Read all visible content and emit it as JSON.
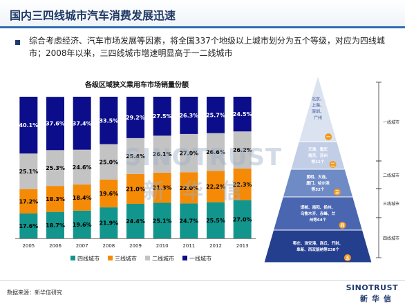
{
  "header": {
    "title": "国内三四线城市汽车消费发展迅速"
  },
  "intro": {
    "text": "综合考虑经济、汽车市场发展等因素，将全国337个地级以上城市划分为五个等级，对应为四线城市；2008年以来，三四线城市增速明显高于一二线城市"
  },
  "chart_data": {
    "type": "bar",
    "stacked": true,
    "title": "各级区域狭义乘用车市场销量份额",
    "categories": [
      "2005",
      "2006",
      "2007",
      "2008",
      "2009",
      "2010",
      "2011",
      "2012",
      "2013"
    ],
    "series": [
      {
        "name": "四线城市",
        "color": "#12958c",
        "values": [
          17.6,
          18.7,
          19.6,
          21.9,
          24.4,
          25.1,
          24.7,
          25.5,
          27.0
        ],
        "labels": [
          "17.6%",
          "18.7%",
          "19.6%",
          "21.9%",
          "24.4%",
          "25.1%",
          "24.7%",
          "25.5%",
          "27.0%"
        ]
      },
      {
        "name": "三线城市",
        "color": "#f58a07",
        "values": [
          17.2,
          18.3,
          18.4,
          19.6,
          21.0,
          21.3,
          22.0,
          22.2,
          22.3
        ],
        "labels": [
          "17.2%",
          "18.3%",
          "18.4%",
          "19.6%",
          "21.0%",
          "21.3%",
          "22.0%",
          "22.2%",
          "22.3%"
        ]
      },
      {
        "name": "二线城市",
        "color": "#c3c3c3",
        "values": [
          25.1,
          25.3,
          24.6,
          25.0,
          25.4,
          26.1,
          27.0,
          26.6,
          26.2
        ],
        "labels": [
          "25.1%",
          "25.3%",
          "24.6%",
          "25.0%",
          "25.4%",
          "26.1%",
          "27.0%",
          "26.6%",
          "26.2%"
        ]
      },
      {
        "name": "一线城市",
        "color": "#0b0d8a",
        "values": [
          40.1,
          37.6,
          37.4,
          33.5,
          29.2,
          27.5,
          26.3,
          25.7,
          24.5
        ],
        "labels": [
          "40.1%",
          "37.6%",
          "37.4%",
          "33.5%",
          "29.2%",
          "27.5%",
          "26.3%",
          "25.7%",
          "24.5%"
        ]
      }
    ],
    "ylim": [
      0,
      100
    ],
    "legend_position": "bottom"
  },
  "watermark": {
    "en": "SINOTRUST",
    "cn": "新华信"
  },
  "pyramid": {
    "tiers": [
      {
        "name": "一线城市",
        "lines": [
          "北京、",
          "上海、",
          "深圳、",
          "广州"
        ],
        "badge": "一"
      },
      {
        "name": "",
        "lines": [
          "天津、重庆",
          "南京、苏州",
          "等11个"
        ],
        "badge": "二"
      },
      {
        "name": "二线城市",
        "lines": [
          "昆明、大连、",
          "厦门、哈尔滨",
          "等32个"
        ],
        "badge": "三"
      },
      {
        "name": "三线城市",
        "lines": [
          "邯郸、南阳、扬州、",
          "乌鲁木齐、赤峰、兰",
          "州等64个"
        ],
        "badge": "四"
      },
      {
        "name": "四线城市",
        "lines": [
          "枣庄、淮安港、商丘、开封、",
          "阜新、西双版纳等238个"
        ],
        "badge": "五"
      }
    ]
  },
  "footer": {
    "source": "数据来源：新华信研究",
    "logo_en": "SINOTRUST",
    "logo_cn": "新华信"
  }
}
